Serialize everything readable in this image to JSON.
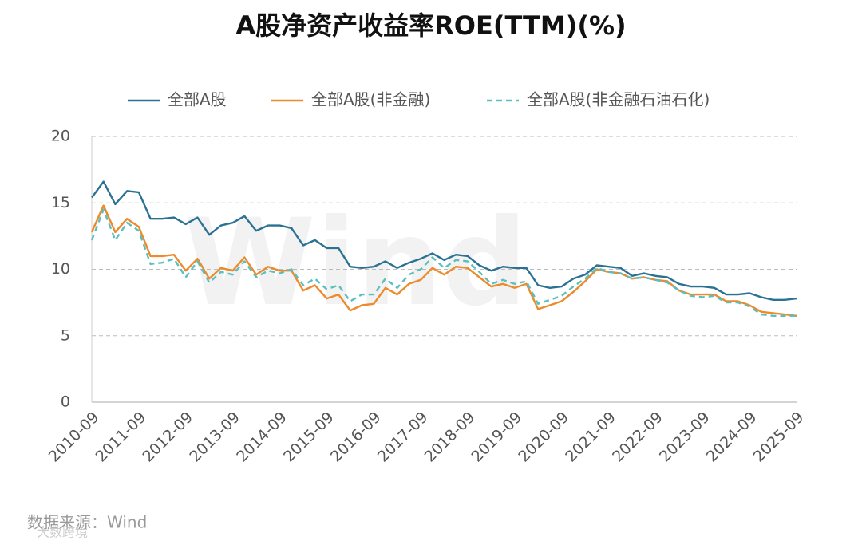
{
  "chart_data": {
    "type": "line",
    "title": "A股净资产收益率ROE(TTM)(%)",
    "source": "数据来源：Wind",
    "watermark": "Wind",
    "corner_mark": "大数跨境",
    "categories": [
      "2010-09",
      null,
      null,
      null,
      "2011-09",
      null,
      null,
      null,
      "2012-09",
      null,
      null,
      null,
      "2013-09",
      null,
      null,
      null,
      "2014-09",
      null,
      null,
      null,
      "2015-09",
      null,
      null,
      null,
      "2016-09",
      null,
      null,
      null,
      "2017-09",
      null,
      null,
      null,
      "2018-09",
      null,
      null,
      null,
      "2019-09",
      null,
      null,
      null,
      "2020-09",
      null,
      null,
      null,
      "2021-09",
      null,
      null,
      null,
      "2022-09",
      null,
      null,
      null,
      "2023-09",
      null,
      null,
      null,
      "2024-09",
      null,
      null,
      null,
      "2025-09"
    ],
    "ylim": [
      0,
      20
    ],
    "yticks": [
      0,
      5,
      10,
      15,
      20
    ],
    "grid": true,
    "legend": "top",
    "series": [
      {
        "name": "全部A股",
        "color": "#2a7194",
        "dash": false,
        "values": [
          15.4,
          16.6,
          14.9,
          15.9,
          15.8,
          13.8,
          13.8,
          13.9,
          13.4,
          13.9,
          12.6,
          13.3,
          13.5,
          14.0,
          12.9,
          13.3,
          13.3,
          13.1,
          11.8,
          12.2,
          11.6,
          11.6,
          10.2,
          10.1,
          10.2,
          10.6,
          10.1,
          10.5,
          10.8,
          11.2,
          10.7,
          11.1,
          11.0,
          10.3,
          9.9,
          10.2,
          10.1,
          10.1,
          8.8,
          8.6,
          8.7,
          9.3,
          9.6,
          10.3,
          10.2,
          10.1,
          9.5,
          9.7,
          9.5,
          9.4,
          8.9,
          8.7,
          8.7,
          8.6,
          8.1,
          8.1,
          8.2,
          7.9,
          7.7,
          7.7,
          7.8
        ]
      },
      {
        "name": "全部A股(非金融)",
        "color": "#ed8a2b",
        "dash": false,
        "values": [
          12.8,
          14.8,
          12.8,
          13.8,
          13.2,
          11.0,
          11.0,
          11.1,
          9.9,
          10.8,
          9.3,
          10.1,
          9.9,
          10.9,
          9.6,
          10.2,
          9.9,
          9.9,
          8.4,
          8.8,
          7.8,
          8.1,
          6.9,
          7.3,
          7.4,
          8.6,
          8.1,
          8.9,
          9.2,
          10.1,
          9.6,
          10.2,
          10.1,
          9.4,
          8.7,
          8.9,
          8.6,
          8.9,
          7.0,
          7.3,
          7.6,
          8.3,
          9.1,
          10.0,
          9.8,
          9.7,
          9.3,
          9.4,
          9.2,
          9.1,
          8.4,
          8.1,
          8.1,
          8.1,
          7.6,
          7.6,
          7.3,
          6.8,
          6.7,
          6.6,
          6.5
        ]
      },
      {
        "name": "全部A股(非金融石油石化)",
        "color": "#5bbfbf",
        "dash": true,
        "values": [
          12.2,
          14.5,
          12.2,
          13.5,
          12.9,
          10.4,
          10.5,
          10.8,
          9.4,
          10.6,
          9.0,
          9.8,
          9.6,
          10.6,
          9.4,
          9.9,
          9.7,
          10.0,
          8.8,
          9.3,
          8.5,
          8.8,
          7.6,
          8.1,
          8.1,
          9.3,
          8.6,
          9.6,
          10.0,
          10.9,
          10.1,
          10.7,
          10.6,
          9.8,
          8.9,
          9.2,
          8.9,
          9.1,
          7.4,
          7.7,
          8.0,
          8.7,
          9.3,
          10.1,
          9.8,
          9.7,
          9.3,
          9.4,
          9.2,
          9.0,
          8.4,
          8.0,
          7.9,
          8.0,
          7.5,
          7.5,
          7.2,
          6.6,
          6.5,
          6.5,
          6.5
        ]
      }
    ]
  }
}
